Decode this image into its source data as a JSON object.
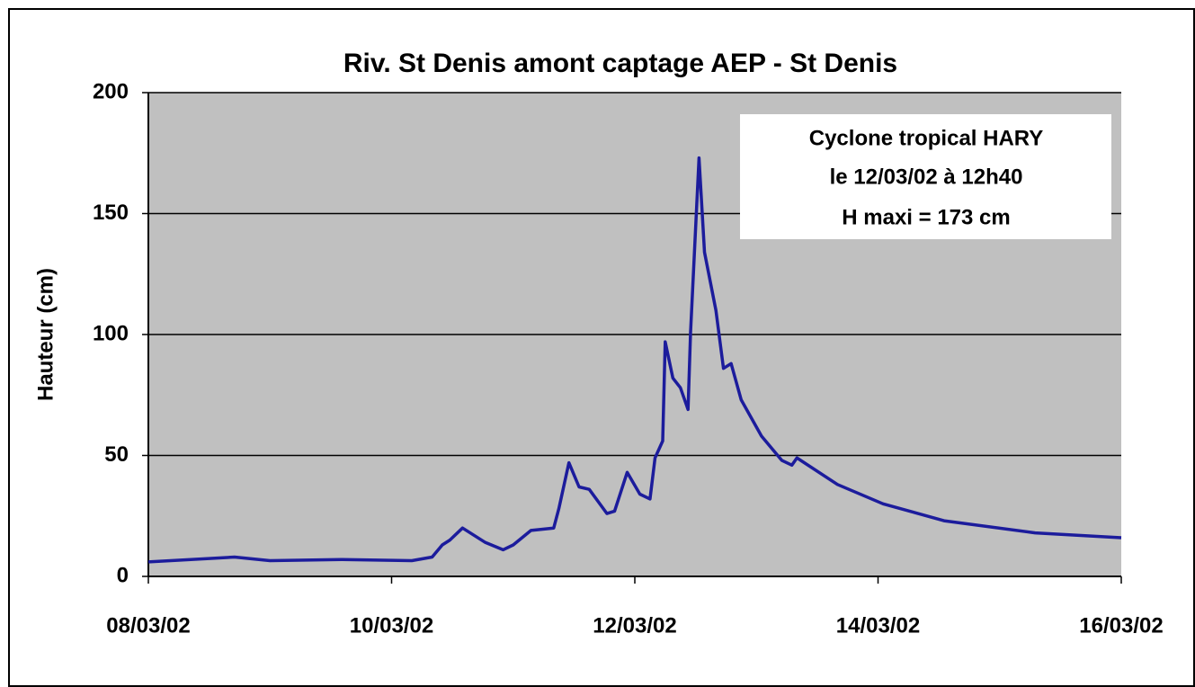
{
  "chart_data": {
    "type": "line",
    "title": "Riv. St Denis amont captage AEP - St Denis",
    "ylabel": "Hauteur (cm)",
    "annotation": [
      "Cyclone tropical HARY",
      "le 12/03/02 à 12h40",
      "H maxi = 173 cm"
    ],
    "x": [
      "2002-03-08T00:00",
      "2002-03-08T17:00",
      "2002-03-09T00:00",
      "2002-03-09T14:00",
      "2002-03-10T04:00",
      "2002-03-10T08:00",
      "2002-03-10T10:00",
      "2002-03-10T11:30",
      "2002-03-10T14:00",
      "2002-03-10T18:30",
      "2002-03-10T22:00",
      "2002-03-11T00:00",
      "2002-03-11T03:30",
      "2002-03-11T08:00",
      "2002-03-11T09:00",
      "2002-03-11T11:00",
      "2002-03-11T13:00",
      "2002-03-11T15:00",
      "2002-03-11T18:30",
      "2002-03-11T20:00",
      "2002-03-11T22:30",
      "2002-03-12T01:00",
      "2002-03-12T03:00",
      "2002-03-12T04:00",
      "2002-03-12T05:30",
      "2002-03-12T06:00",
      "2002-03-12T07:30",
      "2002-03-12T09:00",
      "2002-03-12T10:30",
      "2002-03-12T11:00",
      "2002-03-12T12:40",
      "2002-03-12T13:45",
      "2002-03-12T16:00",
      "2002-03-12T17:30",
      "2002-03-12T19:00",
      "2002-03-12T21:00",
      "2002-03-13T01:00",
      "2002-03-13T05:00",
      "2002-03-13T07:00",
      "2002-03-13T08:00",
      "2002-03-13T16:00",
      "2002-03-14T01:00",
      "2002-03-14T13:00",
      "2002-03-15T07:00",
      "2002-03-16T00:00"
    ],
    "series": [
      {
        "name": "Hauteur",
        "color": "#1c1c9c",
        "values": [
          6,
          8,
          6.5,
          7,
          6.5,
          8,
          13,
          15,
          20,
          14,
          11,
          13,
          19,
          20,
          28,
          47,
          37,
          36,
          26,
          27,
          43,
          34,
          32,
          49,
          56,
          97,
          82,
          78,
          69,
          101,
          173,
          134,
          110,
          86,
          88,
          73,
          58,
          48,
          46,
          49,
          38,
          30,
          23,
          18,
          16
        ]
      }
    ],
    "xlim": [
      "2002-03-08T00:00",
      "2002-03-16T00:00"
    ],
    "xticks": [
      {
        "value": "2002-03-08T00:00",
        "label": "08/03/02"
      },
      {
        "value": "2002-03-10T00:00",
        "label": "10/03/02"
      },
      {
        "value": "2002-03-12T00:00",
        "label": "12/03/02"
      },
      {
        "value": "2002-03-14T00:00",
        "label": "14/03/02"
      },
      {
        "value": "2002-03-16T00:00",
        "label": "16/03/02"
      }
    ],
    "ylim": [
      0,
      200
    ],
    "yticks": [
      0,
      50,
      100,
      150,
      200
    ],
    "grid": true
  }
}
